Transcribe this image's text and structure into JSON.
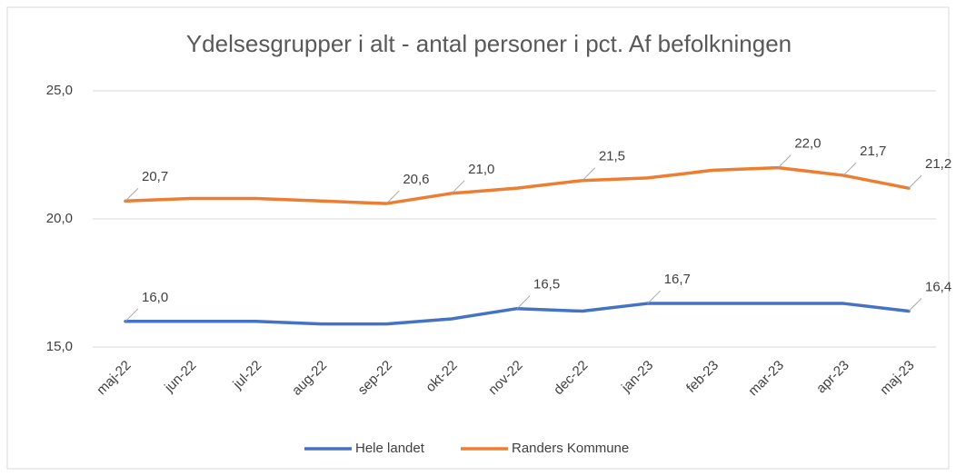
{
  "chart_data": {
    "type": "line",
    "title": "Ydelsesgrupper i alt - antal personer i pct. Af befolkningen",
    "categories": [
      "maj-22",
      "jun-22",
      "jul-22",
      "aug-22",
      "sep-22",
      "okt-22",
      "nov-22",
      "dec-22",
      "jan-23",
      "feb-23",
      "mar-23",
      "apr-23",
      "maj-23"
    ],
    "series": [
      {
        "name": "Hele landet",
        "color": "#4472c4",
        "values": [
          16.0,
          16.0,
          16.0,
          15.9,
          15.9,
          16.1,
          16.5,
          16.4,
          16.7,
          16.7,
          16.7,
          16.7,
          16.4
        ],
        "value_labels": [
          "16,0",
          null,
          null,
          null,
          null,
          null,
          "16,5",
          null,
          "16,7",
          null,
          null,
          null,
          "16,4"
        ]
      },
      {
        "name": "Randers Kommune",
        "color": "#ed7d31",
        "values": [
          20.7,
          20.8,
          20.8,
          20.7,
          20.6,
          21.0,
          21.2,
          21.5,
          21.6,
          21.9,
          22.0,
          21.7,
          21.2
        ],
        "value_labels": [
          "20,7",
          null,
          null,
          null,
          "20,6",
          "21,0",
          null,
          "21,5",
          null,
          null,
          "22,0",
          "21,7",
          "21,2"
        ]
      }
    ],
    "ylim": [
      15,
      25
    ],
    "yticks": [
      {
        "value": 15,
        "label": "15,0"
      },
      {
        "value": 20,
        "label": "20,0"
      },
      {
        "value": 25,
        "label": "25,0"
      }
    ],
    "grid": true,
    "legend": "bottom"
  }
}
